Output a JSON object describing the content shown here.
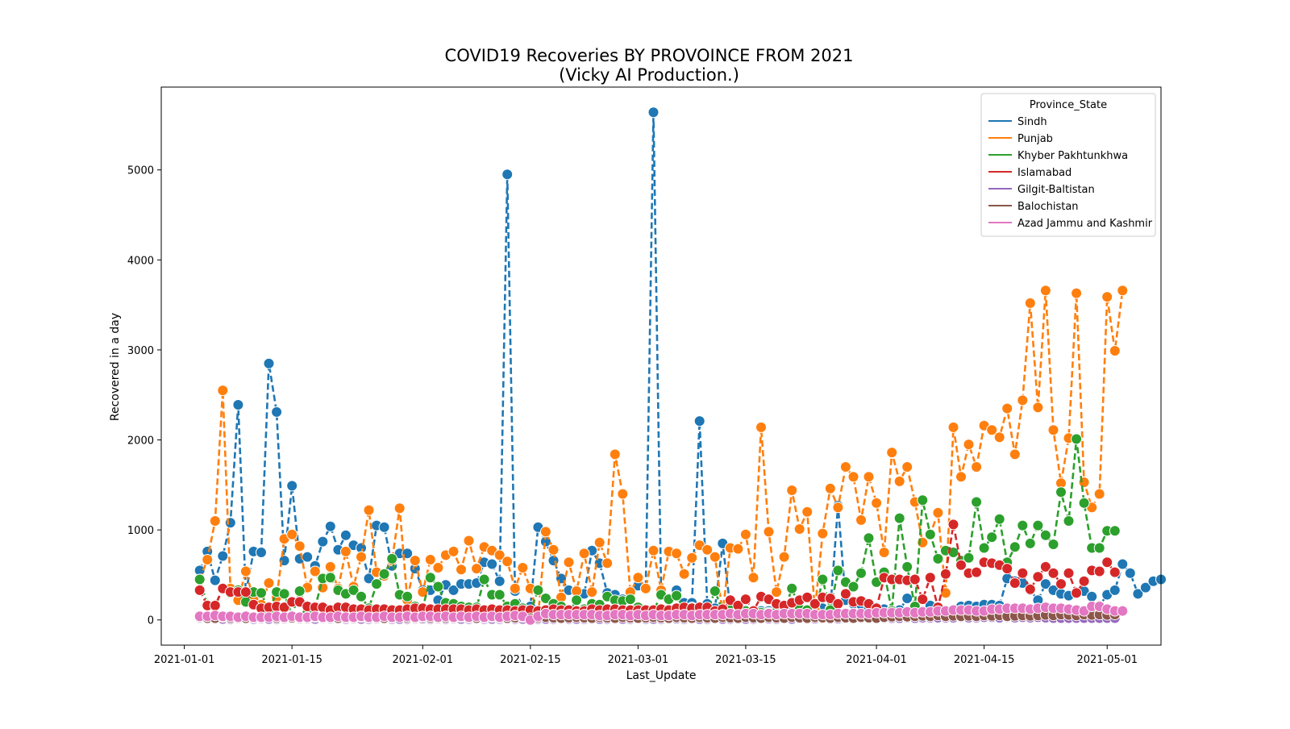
{
  "chart_data": {
    "type": "line",
    "title": "COVID19 Recoveries BY PROVOINCE FROM 2021",
    "subtitle": "(Vicky AI Production.)",
    "xlabel": "Last_Update",
    "ylabel": "Recovered in a day",
    "start_date": "2021-01-03",
    "xlim": [
      "2020-12-29",
      "2021-05-08"
    ],
    "ylim": [
      -280,
      5920
    ],
    "x_ticks": [
      "2021-01-01",
      "2021-01-15",
      "2021-02-01",
      "2021-02-15",
      "2021-03-01",
      "2021-03-15",
      "2021-04-01",
      "2021-04-15",
      "2021-05-01"
    ],
    "y_ticks": [
      0,
      1000,
      2000,
      3000,
      4000,
      5000
    ],
    "grid": false,
    "line_style": "dashed",
    "marker": "circle",
    "legend": {
      "title": "Province_State",
      "position": "top-right"
    },
    "series": [
      {
        "name": "Sindh",
        "color": "#1f77b4",
        "values": [
          550,
          760,
          440,
          710,
          1080,
          2390,
          300,
          760,
          750,
          2850,
          2310,
          660,
          1490,
          680,
          700,
          600,
          870,
          1040,
          780,
          940,
          830,
          800,
          460,
          1050,
          1030,
          600,
          740,
          740,
          570,
          330,
          330,
          220,
          390,
          330,
          400,
          400,
          410,
          640,
          620,
          430,
          4950,
          320,
          140,
          150,
          1030,
          870,
          660,
          460,
          330,
          320,
          290,
          770,
          630,
          300,
          280,
          230,
          320,
          380,
          350,
          5640,
          310,
          240,
          330,
          190,
          190,
          2210,
          180,
          130,
          850,
          130,
          120,
          110,
          110,
          100,
          100,
          100,
          110,
          120,
          110,
          100,
          110,
          130,
          120,
          1270,
          220,
          180,
          170,
          140,
          140,
          120,
          110,
          110,
          240,
          120,
          100,
          160,
          100,
          90,
          90,
          150,
          160,
          150,
          170,
          170,
          160,
          460,
          430,
          410,
          330,
          220,
          400,
          330,
          290,
          270,
          310,
          320,
          260,
          160,
          280,
          330,
          620,
          520,
          290,
          360,
          430,
          450
        ]
      },
      {
        "name": "Punjab",
        "color": "#ff7f0e",
        "values": [
          450,
          670,
          1100,
          2550,
          350,
          220,
          540,
          230,
          170,
          410,
          250,
          900,
          950,
          820,
          360,
          540,
          360,
          590,
          350,
          760,
          370,
          700,
          1220,
          530,
          490,
          660,
          1240,
          220,
          660,
          310,
          670,
          580,
          720,
          760,
          560,
          880,
          570,
          810,
          770,
          720,
          650,
          350,
          580,
          350,
          40,
          980,
          780,
          250,
          640,
          320,
          740,
          310,
          860,
          630,
          1840,
          1400,
          310,
          470,
          350,
          770,
          330,
          760,
          740,
          510,
          690,
          830,
          780,
          700,
          80,
          800,
          790,
          950,
          470,
          2140,
          980,
          310,
          700,
          1440,
          1010,
          1200,
          110,
          960,
          1460,
          1250,
          1700,
          1590,
          1110,
          1590,
          1300,
          750,
          1860,
          1540,
          1700,
          1310,
          860,
          950,
          1190,
          300,
          2140,
          1590,
          1950,
          1700,
          2160,
          2110,
          2030,
          2350,
          1840,
          2440,
          3520,
          2360,
          3660,
          2110,
          1520,
          2020,
          3630,
          1530,
          1250,
          1400,
          3590,
          2990,
          3660
        ]
      },
      {
        "name": "Khyber Pakhtunkhwa",
        "color": "#2ca02c",
        "values": [
          450,
          170,
          150,
          350,
          300,
          330,
          200,
          310,
          300,
          100,
          310,
          290,
          50,
          320,
          80,
          140,
          460,
          470,
          330,
          290,
          330,
          260,
          130,
          400,
          510,
          680,
          280,
          260,
          150,
          130,
          470,
          370,
          190,
          180,
          150,
          140,
          140,
          450,
          280,
          280,
          150,
          180,
          130,
          100,
          330,
          240,
          180,
          150,
          80,
          220,
          120,
          180,
          170,
          260,
          220,
          210,
          230,
          140,
          90,
          100,
          280,
          230,
          270,
          120,
          140,
          110,
          90,
          320,
          100,
          110,
          100,
          100,
          100,
          80,
          80,
          90,
          90,
          350,
          120,
          110,
          60,
          450,
          110,
          550,
          420,
          370,
          520,
          910,
          420,
          530,
          100,
          1130,
          590,
          150,
          1330,
          950,
          680,
          770,
          750,
          660,
          690,
          1310,
          800,
          920,
          1120,
          640,
          810,
          1050,
          850,
          1050,
          940,
          840,
          1420,
          1100,
          2010,
          1300,
          800,
          800,
          990,
          990
        ]
      },
      {
        "name": "Islamabad",
        "color": "#d62728",
        "values": [
          330,
          160,
          160,
          350,
          310,
          310,
          310,
          170,
          130,
          140,
          150,
          140,
          200,
          200,
          150,
          140,
          140,
          110,
          140,
          140,
          120,
          120,
          110,
          120,
          120,
          110,
          110,
          120,
          130,
          130,
          120,
          120,
          120,
          120,
          120,
          110,
          120,
          110,
          120,
          110,
          110,
          100,
          110,
          110,
          100,
          110,
          120,
          110,
          110,
          100,
          100,
          120,
          110,
          120,
          120,
          110,
          110,
          110,
          110,
          110,
          120,
          110,
          130,
          140,
          130,
          140,
          140,
          100,
          120,
          220,
          160,
          230,
          100,
          260,
          230,
          180,
          160,
          190,
          220,
          250,
          180,
          250,
          240,
          180,
          290,
          200,
          210,
          180,
          130,
          470,
          450,
          450,
          440,
          450,
          230,
          470,
          140,
          510,
          1060,
          610,
          520,
          530,
          640,
          630,
          610,
          570,
          410,
          520,
          340,
          480,
          590,
          520,
          400,
          520,
          300,
          430,
          550,
          540,
          640,
          530
        ]
      },
      {
        "name": "Gilgit-Baltistan",
        "color": "#9467bd",
        "values": [
          20,
          10,
          10,
          10,
          10,
          15,
          10,
          10,
          10,
          10,
          10,
          10,
          15,
          10,
          10,
          10,
          15,
          10,
          10,
          10,
          10,
          10,
          10,
          10,
          10,
          10,
          10,
          10,
          10,
          15,
          10,
          10,
          10,
          10,
          10,
          10,
          10,
          10,
          10,
          10,
          10,
          10,
          10,
          10,
          10,
          10,
          10,
          10,
          10,
          10,
          10,
          10,
          10,
          10,
          10,
          10,
          10,
          15,
          10,
          10,
          10,
          10,
          15,
          10,
          10,
          10,
          10,
          10,
          10,
          10,
          10,
          10,
          10,
          15,
          15,
          10,
          15,
          10,
          15,
          10,
          15,
          20,
          10,
          15,
          20,
          15,
          20,
          20,
          20,
          20,
          20,
          20,
          25,
          20,
          25,
          25,
          25,
          25,
          25,
          30,
          25,
          25,
          30,
          30,
          25,
          30,
          25,
          30,
          25,
          30,
          25,
          20,
          20,
          20,
          20,
          20,
          20,
          20,
          20,
          20
        ]
      },
      {
        "name": "Balochistan",
        "color": "#8c564b",
        "values": [
          30,
          20,
          20,
          30,
          25,
          20,
          20,
          25,
          20,
          30,
          25,
          20,
          25,
          20,
          20,
          30,
          25,
          20,
          20,
          25,
          20,
          30,
          25,
          20,
          20,
          25,
          30,
          25,
          20,
          30,
          25,
          20,
          25,
          20,
          30,
          25,
          20,
          25,
          30,
          25,
          20,
          25,
          30,
          20,
          25,
          30,
          25,
          20,
          25,
          30,
          25,
          20,
          30,
          25,
          20,
          30,
          25,
          20,
          25,
          30,
          25,
          20,
          30,
          25,
          20,
          30,
          25,
          20,
          30,
          25,
          20,
          30,
          25,
          20,
          30,
          25,
          20,
          30,
          25,
          20,
          30,
          25,
          20,
          30,
          25,
          20,
          30,
          25,
          20,
          30,
          35,
          40,
          35,
          40,
          45,
          40,
          50,
          40,
          45,
          40,
          45,
          40,
          50,
          45,
          50,
          40,
          45,
          50,
          45,
          50,
          55,
          50,
          60,
          55,
          50,
          60,
          55,
          60,
          55,
          60
        ]
      },
      {
        "name": "Azad Jammu and Kashmir",
        "color": "#e377c2",
        "values": [
          40,
          40,
          50,
          40,
          40,
          30,
          40,
          30,
          30,
          30,
          40,
          30,
          40,
          30,
          30,
          40,
          30,
          30,
          40,
          30,
          30,
          40,
          30,
          30,
          40,
          30,
          30,
          40,
          30,
          40,
          40,
          30,
          40,
          30,
          40,
          30,
          40,
          30,
          40,
          30,
          40,
          50,
          40,
          0,
          40,
          70,
          60,
          60,
          60,
          60,
          60,
          60,
          50,
          50,
          60,
          60,
          50,
          60,
          50,
          60,
          50,
          50,
          60,
          60,
          50,
          60,
          60,
          60,
          60,
          70,
          60,
          70,
          70,
          60,
          70,
          60,
          70,
          70,
          70,
          70,
          60,
          60,
          60,
          70,
          70,
          70,
          70,
          70,
          80,
          80,
          80,
          80,
          90,
          80,
          90,
          90,
          100,
          100,
          110,
          110,
          110,
          100,
          100,
          120,
          120,
          130,
          130,
          130,
          120,
          130,
          140,
          130,
          130,
          120,
          110,
          100,
          150,
          150,
          120,
          100,
          100
        ]
      }
    ]
  }
}
